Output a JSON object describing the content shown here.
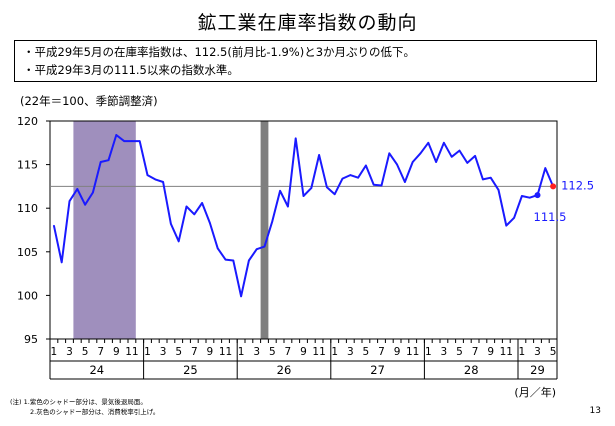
{
  "header": {
    "title": "鉱工業在庫率指数の動向",
    "bullets": [
      "・平成29年5月の在庫率指数は、112.5(前月比-1.9%)と3か月ぶりの低下。",
      "・平成29年3月の111.5以来の指数水準。"
    ]
  },
  "chart_data": {
    "type": "line",
    "unit_label": "(22年＝100、季節調整済)",
    "xlabel": "(月／年)",
    "ylim": [
      95,
      120
    ],
    "yticks": [
      95,
      100,
      105,
      110,
      115,
      120
    ],
    "month_tick_labels": [
      "1",
      "3",
      "5",
      "7",
      "9",
      "11",
      "1",
      "3",
      "5",
      "7",
      "9",
      "11",
      "1",
      "3",
      "5",
      "7",
      "9",
      "11",
      "1",
      "3",
      "5",
      "7",
      "9",
      "11",
      "1",
      "3",
      "5",
      "7",
      "9",
      "11",
      "1",
      "3",
      "5"
    ],
    "year_groups": [
      {
        "label": "24",
        "start": 0,
        "end": 11
      },
      {
        "label": "25",
        "start": 12,
        "end": 23
      },
      {
        "label": "26",
        "start": 24,
        "end": 35
      },
      {
        "label": "27",
        "start": 36,
        "end": 47
      },
      {
        "label": "28",
        "start": 48,
        "end": 59
      },
      {
        "label": "29",
        "start": 60,
        "end": 64
      }
    ],
    "series": [
      {
        "color": "#1a1aff",
        "values": [
          108.0,
          103.8,
          110.8,
          112.2,
          110.4,
          111.8,
          115.3,
          115.5,
          118.4,
          117.7,
          117.7,
          117.7,
          113.8,
          113.3,
          113.0,
          108.2,
          106.2,
          110.2,
          109.3,
          110.6,
          108.3,
          105.4,
          104.1,
          104.0,
          99.9,
          104.0,
          105.3,
          105.6,
          108.5,
          112.0,
          110.2,
          118.0,
          111.4,
          112.3,
          116.1,
          112.4,
          111.6,
          113.4,
          113.8,
          113.5,
          114.9,
          112.7,
          112.6,
          116.3,
          115.0,
          113.0,
          115.3,
          116.3,
          117.5,
          115.3,
          117.5,
          115.9,
          116.6,
          115.2,
          116.0,
          113.3,
          113.5,
          112.1,
          108.0,
          108.9,
          111.4,
          111.2,
          111.5,
          114.6,
          112.5
        ]
      }
    ],
    "reference_value": 112.5,
    "shaded_periods": [
      {
        "type": "recession",
        "start": 3,
        "end": 10,
        "color": "#9f8fbd"
      },
      {
        "type": "tax_increase",
        "start": 27,
        "end": 27,
        "color": "#7f7f7f"
      }
    ],
    "annotations": [
      {
        "text": "112.5",
        "index": 64,
        "value": 112.5,
        "marker_color": "#ff2020",
        "text_color": "#1a1aff"
      },
      {
        "text": "111.5",
        "index": 62,
        "value": 111.5,
        "marker_color": "#1a1aff",
        "text_color": "#1a1aff"
      }
    ],
    "grid": false,
    "legend": "none"
  },
  "footnotes": [
    "(注) 1.紫色のシャドー部分は、景気後退局面。",
    "2.灰色のシャドー部分は、消費税率引上げ。"
  ],
  "page_number": "13"
}
